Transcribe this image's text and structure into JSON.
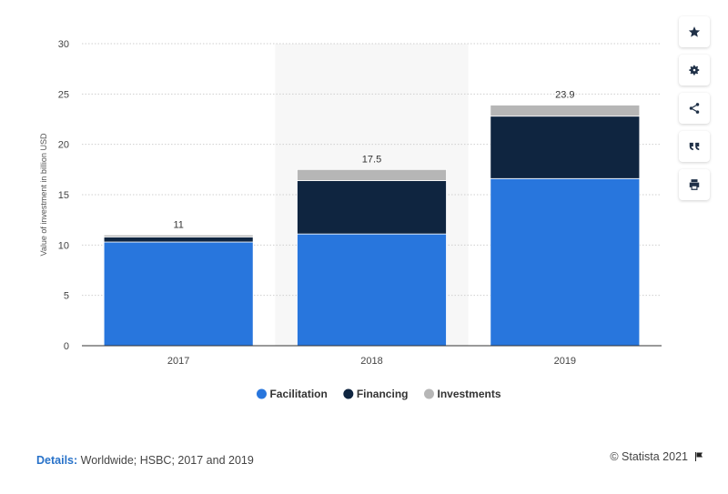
{
  "chart_data": {
    "type": "bar",
    "stacked": true,
    "categories": [
      "2017",
      "2018",
      "2019"
    ],
    "series": [
      {
        "name": "Facilitation",
        "values": [
          10.3,
          11.1,
          16.6
        ],
        "color": "#2876dd"
      },
      {
        "name": "Financing",
        "values": [
          0.5,
          5.3,
          6.2
        ],
        "color": "#0f2540"
      },
      {
        "name": "Investments",
        "values": [
          0.2,
          1.1,
          1.1
        ],
        "color": "#b6b6b6"
      }
    ],
    "totals": [
      "11",
      "17.5",
      "23.9"
    ],
    "ylabel": "Value of investment in billion USD",
    "ylim": [
      0,
      30
    ],
    "yticks": [
      "0",
      "5",
      "10",
      "15",
      "20",
      "25",
      "30"
    ],
    "grid": true,
    "legend_position": "bottom",
    "highlighted_category": "2018"
  },
  "details": {
    "label": "Details:",
    "text": "Worldwide; HSBC; 2017 and 2019"
  },
  "credit": {
    "text": "© Statista 2021"
  },
  "toolbar": [
    {
      "name": "favorite-button",
      "icon": "star-icon"
    },
    {
      "name": "settings-button",
      "icon": "gear-icon"
    },
    {
      "name": "share-button",
      "icon": "share-icon"
    },
    {
      "name": "cite-button",
      "icon": "quote-icon"
    },
    {
      "name": "print-button",
      "icon": "print-icon"
    }
  ]
}
